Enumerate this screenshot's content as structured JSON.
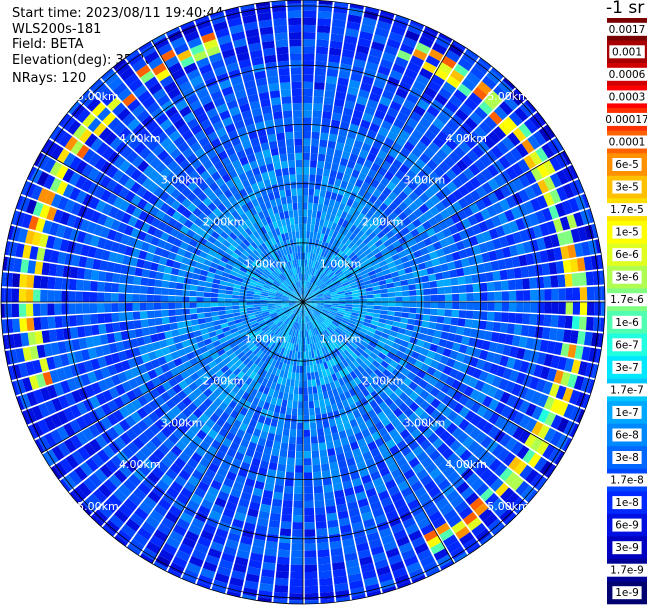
{
  "header": {
    "start_time": "Start time: 2023/08/11 19:40:44",
    "instrument": "WLS200s-181",
    "field": "Field: BETA",
    "elevation": "Elevation(deg): 35.30",
    "nrays": "NRays: 120"
  },
  "colorbar": {
    "units": "-1 sr",
    "labels": [
      "0.0017",
      "0.001",
      "0.0006",
      "0.0003",
      "0.00017",
      "0.0001",
      "6e-5",
      "3e-5",
      "1.7e-5",
      "1e-5",
      "6e-6",
      "3e-6",
      "1.7e-6",
      "1e-6",
      "6e-7",
      "3e-7",
      "1.7e-7",
      "1e-7",
      "6e-8",
      "3e-8",
      "1.7e-8",
      "1e-8",
      "6e-9",
      "3e-9",
      "1.7e-9",
      "1e-9"
    ],
    "colors": [
      "#7a0000",
      "#a80000",
      "#d00000",
      "#ff0000",
      "#ff3000",
      "#ff6000",
      "#ff9000",
      "#ffc000",
      "#ffe000",
      "#ffff00",
      "#e0ff20",
      "#b0ff50",
      "#80ff80",
      "#50ffb0",
      "#20ffe0",
      "#00e8ff",
      "#00c8ff",
      "#00a8ff",
      "#0088ff",
      "#0068ff",
      "#0048ff",
      "#0028ff",
      "#0010e0",
      "#0000c0",
      "#000098",
      "#000070"
    ]
  },
  "chart_data": {
    "type": "heatmap",
    "projection": "polar PPI scan",
    "nrays": 120,
    "range_rings_km": [
      1.0,
      2.0,
      3.0,
      4.0,
      5.0
    ],
    "ring_labels": [
      "1.00km",
      "2.00km",
      "3.00km",
      "4.00km",
      "5.00km"
    ],
    "max_range_km": 5.1,
    "field": "BETA",
    "color_scale": "log",
    "value_range": [
      1e-09,
      0.0017
    ],
    "typical_value_near_range": 1e-07,
    "typical_value_far_range": 1e-08,
    "enhanced_arc_range_km": [
      4.4,
      4.8
    ],
    "enhanced_arc_value_max": 0.0001
  }
}
